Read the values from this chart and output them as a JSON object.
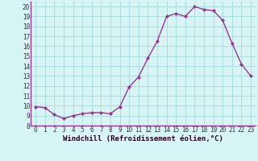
{
  "x": [
    0,
    1,
    2,
    3,
    4,
    5,
    6,
    7,
    8,
    9,
    10,
    11,
    12,
    13,
    14,
    15,
    16,
    17,
    18,
    19,
    20,
    21,
    22,
    23
  ],
  "y": [
    9.9,
    9.8,
    9.1,
    8.7,
    9.0,
    9.2,
    9.3,
    9.3,
    9.2,
    9.9,
    11.9,
    12.9,
    14.8,
    16.5,
    19.0,
    19.3,
    19.0,
    20.0,
    19.7,
    19.6,
    18.6,
    16.3,
    14.2,
    13.0
  ],
  "line_color": "#993399",
  "marker": "D",
  "marker_size": 2.0,
  "bg_color": "#d8f5f5",
  "grid_color": "#aadddd",
  "xlabel": "Windchill (Refroidissement éolien,°C)",
  "xlim": [
    -0.5,
    23.5
  ],
  "ylim": [
    8,
    20.5
  ],
  "yticks": [
    8,
    9,
    10,
    11,
    12,
    13,
    14,
    15,
    16,
    17,
    18,
    19,
    20
  ],
  "xticks": [
    0,
    1,
    2,
    3,
    4,
    5,
    6,
    7,
    8,
    9,
    10,
    11,
    12,
    13,
    14,
    15,
    16,
    17,
    18,
    19,
    20,
    21,
    22,
    23
  ],
  "tick_fontsize": 5.5,
  "xlabel_fontsize": 6.5,
  "line_width": 1.0,
  "spine_color": "#993399"
}
